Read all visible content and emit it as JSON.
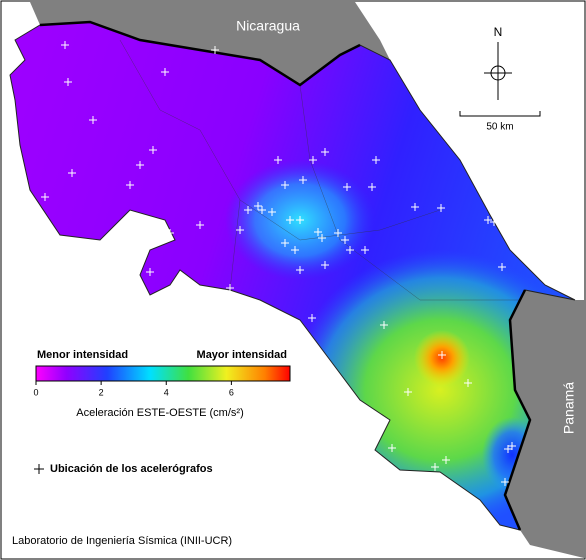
{
  "labels": {
    "nicaragua": "Nicaragua",
    "panama": "Panamá"
  },
  "north": "N",
  "scale_bar": "50 km",
  "colorbar": {
    "min_label": "Menor intensidad",
    "max_label": "Mayor intensidad",
    "lim": [
      0,
      7.8
    ],
    "ticks": [
      0,
      2,
      4,
      6
    ],
    "title": "Aceleración ESTE-OESTE (cm/s²)"
  },
  "legend": "Ubicación de los acelerógrafos",
  "credit": "Laboratorio de Ingeniería Sísmica (INII-UCR)"
}
